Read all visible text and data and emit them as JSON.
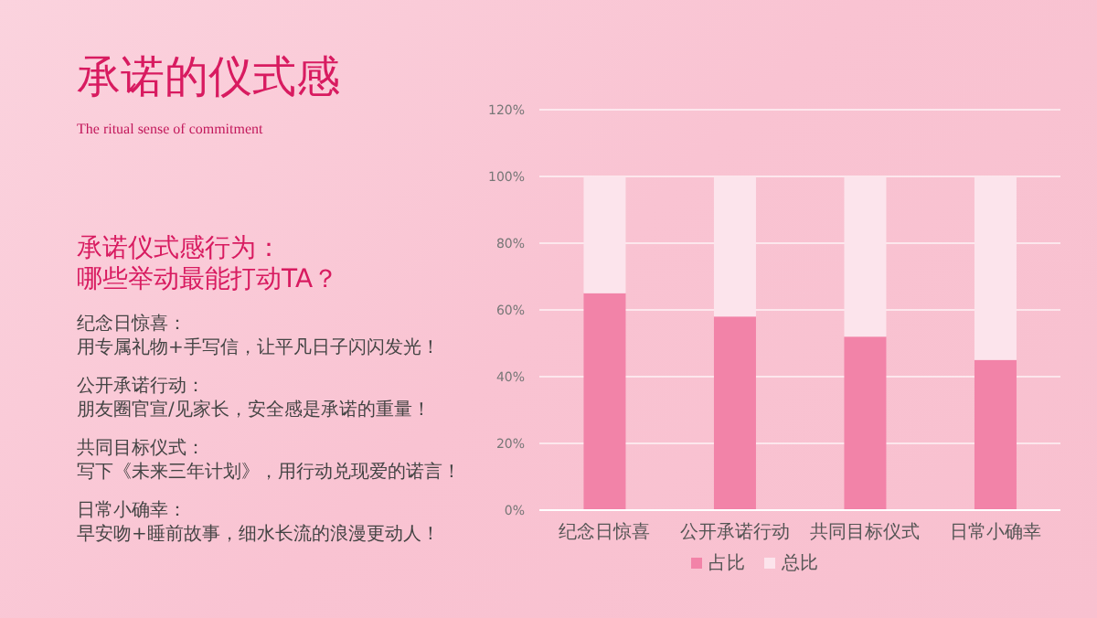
{
  "chart_data": {
    "type": "bar",
    "title": "承诺的仪式感",
    "subtitle": "The ritual sense of commitment",
    "annotations": [
      "承诺仪式感行为：",
      "哪些举动最能打动TA？",
      "纪念日惊喜：",
      "用专属礼物+手写信，让平凡日子闪闪发光！",
      "公开承诺行动：",
      "朋友圈官宣/见家长，安全感是承诺的重量！",
      "共同目标仪式：",
      "写下《未来三年计划》，用行动兑现爱的诺言！",
      "日常小确幸：",
      "早安吻+睡前故事，细水长流的浪漫更动人！"
    ],
    "categories": [
      "纪念日惊喜",
      "公开承诺行动",
      "共同目标仪式",
      "日常小确幸"
    ],
    "stacked": true,
    "series": [
      {
        "name": "占比",
        "color": "#f283a8",
        "values": [
          65,
          58,
          52,
          45
        ]
      },
      {
        "name": "总比",
        "color": "#fce4ec",
        "values": [
          35,
          42,
          48,
          55
        ]
      }
    ],
    "ylim": [
      0,
      120
    ],
    "yticks": [
      {
        "value": 0,
        "label": "0%"
      },
      {
        "value": 20,
        "label": "20%"
      },
      {
        "value": 40,
        "label": "40%"
      },
      {
        "value": 60,
        "label": "60%"
      },
      {
        "value": 80,
        "label": "80%"
      },
      {
        "value": 100,
        "label": "100%"
      },
      {
        "value": 120,
        "label": "120%"
      }
    ],
    "grid": "y",
    "legend": "bottom"
  }
}
